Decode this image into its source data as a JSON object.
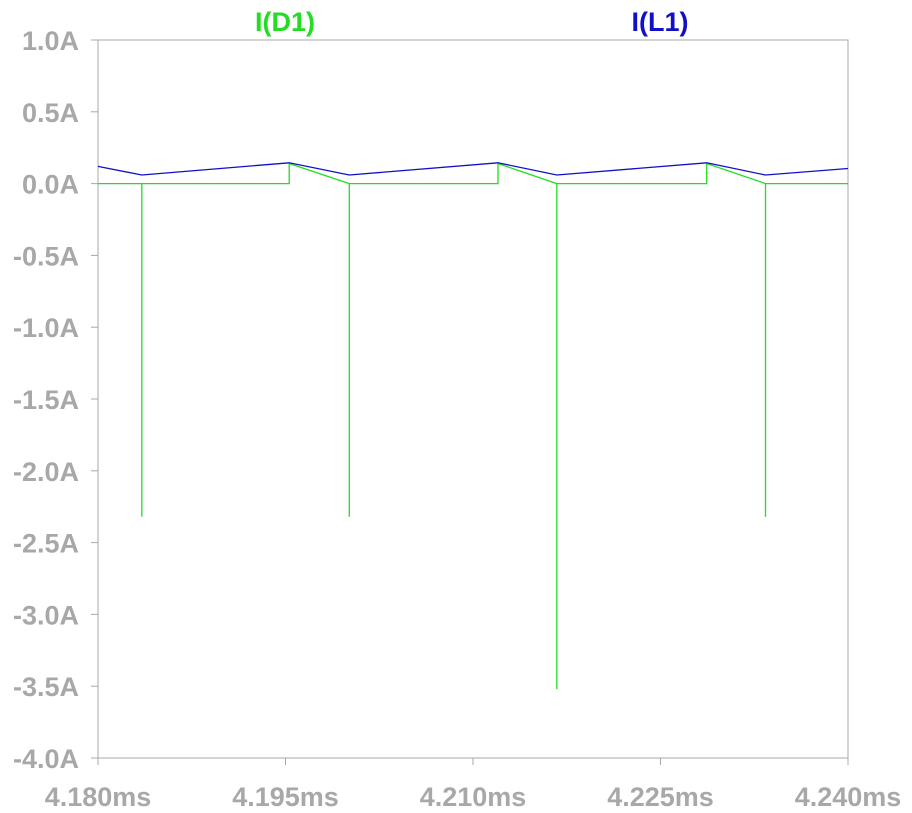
{
  "chart_data": {
    "type": "line",
    "title": "",
    "xlabel": "",
    "ylabel": "",
    "xlim": [
      4.18,
      4.24
    ],
    "ylim": [
      -4.0,
      1.0
    ],
    "grid": false,
    "x_ticks": [
      "4.180ms",
      "4.195ms",
      "4.210ms",
      "4.225ms",
      "4.240ms"
    ],
    "x_tick_values": [
      4.18,
      4.195,
      4.21,
      4.225,
      4.24
    ],
    "y_ticks": [
      "1.0A",
      "0.5A",
      "0.0A",
      "-0.5A",
      "-1.0A",
      "-1.5A",
      "-2.0A",
      "-2.5A",
      "-3.0A",
      "-3.5A",
      "-4.0A"
    ],
    "y_tick_values": [
      1.0,
      0.5,
      0.0,
      -0.5,
      -1.0,
      -1.5,
      -2.0,
      -2.5,
      -3.0,
      -3.5,
      -4.0
    ],
    "legend_placement": "top",
    "series": [
      {
        "name": "I(D1)",
        "color": "#22dd22",
        "x": [
          4.18,
          4.1835,
          4.1835,
          4.1835,
          4.1953,
          4.1953,
          4.2001,
          4.2001,
          4.2001,
          4.212,
          4.212,
          4.2167,
          4.2167,
          4.2167,
          4.2287,
          4.2287,
          4.2334,
          4.2334,
          4.2334,
          4.24
        ],
        "y": [
          0.0,
          0.0,
          -2.32,
          0.0,
          0.0,
          0.14,
          0.0,
          -2.32,
          0.0,
          0.0,
          0.14,
          0.0,
          -3.52,
          0.0,
          0.0,
          0.14,
          0.0,
          -2.32,
          0.0,
          0.0
        ]
      },
      {
        "name": "I(L1)",
        "color": "#1010c8",
        "x": [
          4.18,
          4.1835,
          4.1953,
          4.2001,
          4.212,
          4.2167,
          4.2287,
          4.2334,
          4.24
        ],
        "y": [
          0.12,
          0.06,
          0.145,
          0.06,
          0.145,
          0.06,
          0.145,
          0.06,
          0.105
        ]
      }
    ]
  }
}
